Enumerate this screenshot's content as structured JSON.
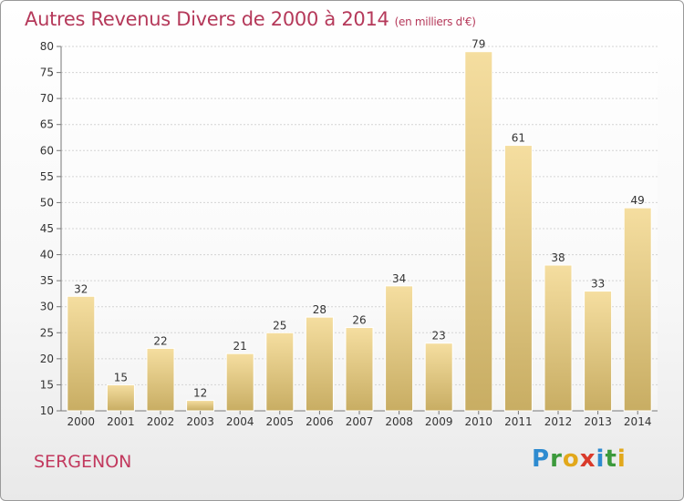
{
  "header": {
    "title": "Autres Revenus Divers de 2000 à 2014",
    "subtitle": "(en milliers d'€)"
  },
  "footer": {
    "town": "SERGENON",
    "logo": "Proxiti"
  },
  "colors": {
    "bar_top": "#f5dea0",
    "bar_bottom": "#c8ad63",
    "title": "#b5395a"
  },
  "chart_data": {
    "type": "bar",
    "categories": [
      "2000",
      "2001",
      "2002",
      "2003",
      "2004",
      "2005",
      "2006",
      "2007",
      "2008",
      "2009",
      "2010",
      "2011",
      "2012",
      "2013",
      "2014"
    ],
    "values": [
      32,
      15,
      22,
      12,
      21,
      25,
      28,
      26,
      34,
      23,
      79,
      61,
      38,
      33,
      49
    ],
    "ylim": [
      10,
      80
    ],
    "yticks": [
      10,
      15,
      20,
      25,
      30,
      35,
      40,
      45,
      50,
      55,
      60,
      65,
      70,
      75,
      80
    ],
    "grid": true
  }
}
